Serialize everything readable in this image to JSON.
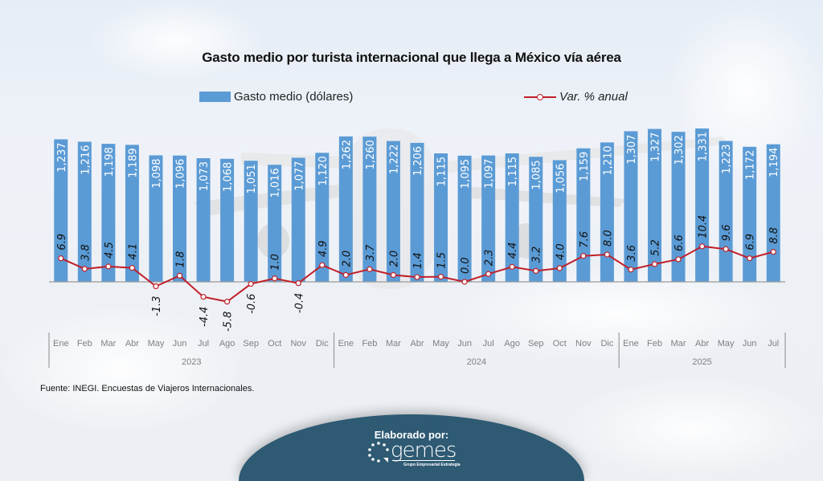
{
  "chart_data": {
    "type": "bar",
    "title": "Gasto medio por turista internacional que llega a México vía aérea",
    "xlabel": "",
    "ylabel": "",
    "categories": [
      "Ene",
      "Feb",
      "Mar",
      "Abr",
      "May",
      "Jun",
      "Jul",
      "Ago",
      "Sep",
      "Oct",
      "Nov",
      "Dic",
      "Ene",
      "Feb",
      "Mar",
      "Abr",
      "May",
      "Jun",
      "Jul",
      "Ago",
      "Sep",
      "Oct",
      "Nov",
      "Dic",
      "Ene",
      "Feb",
      "Mar",
      "Abr",
      "May",
      "Jun",
      "Jul"
    ],
    "year_groups": [
      {
        "label": "2023",
        "count": 12
      },
      {
        "label": "2024",
        "count": 12
      },
      {
        "label": "2025",
        "count": 7
      }
    ],
    "series": [
      {
        "name": "Gasto medio (dólares)",
        "type": "bar",
        "color": "#5b9bd5",
        "values": [
          1237,
          1216,
          1198,
          1189,
          1098,
          1096,
          1073,
          1068,
          1051,
          1016,
          1077,
          1120,
          1262,
          1260,
          1222,
          1206,
          1115,
          1095,
          1097,
          1115,
          1085,
          1056,
          1159,
          1210,
          1307,
          1327,
          1302,
          1331,
          1223,
          1172,
          1194
        ],
        "labels": [
          "1,237",
          "1,216",
          "1,198",
          "1,189",
          "1,098",
          "1,096",
          "1,073",
          "1,068",
          "1,051",
          "1,016",
          "1,077",
          "1,120",
          "1,262",
          "1,260",
          "1,222",
          "1,206",
          "1,115",
          "1,095",
          "1,097",
          "1,115",
          "1,085",
          "1,056",
          "1,159",
          "1,210",
          "1,307",
          "1,327",
          "1,302",
          "1,331",
          "1,223",
          "1,172",
          "1,194"
        ]
      },
      {
        "name": "Var. % anual",
        "type": "line",
        "color": "#c0202a",
        "values": [
          6.9,
          3.8,
          4.5,
          4.1,
          -1.3,
          1.8,
          -4.4,
          -5.8,
          -0.6,
          1.0,
          -0.4,
          4.9,
          2.0,
          3.7,
          2.0,
          1.4,
          1.5,
          0.0,
          2.3,
          4.4,
          3.2,
          4.0,
          7.6,
          8.0,
          3.6,
          5.2,
          6.6,
          10.4,
          9.6,
          6.9,
          8.8
        ],
        "labels": [
          "6.9",
          "3.8",
          "4.5",
          "4.1",
          "-1.3",
          "1.8",
          "-4.4",
          "-5.8",
          "-0.6",
          "1.0",
          "-0.4",
          "4.9",
          "2.0",
          "3.7",
          "2.0",
          "1.4",
          "1.5",
          "0.0",
          "2.3",
          "4.4",
          "3.2",
          "4.0",
          "7.6",
          "8.0",
          "3.6",
          "5.2",
          "6.6",
          "10.4",
          "9.6",
          "6.9",
          "8.8"
        ]
      }
    ],
    "ylim_bars": [
      0,
      1400
    ],
    "ylim_line_pct": [
      -12,
      42
    ],
    "grid": false,
    "legend_position": "top"
  },
  "legend": {
    "bar_label": "Gasto medio (dólares)",
    "line_label": "Var. % anual"
  },
  "source_note": "Fuente: INEGI. Encuestas de Viajeros Internacionales.",
  "footer": {
    "label": "Elaborado por:",
    "brand": "gemes",
    "tagline": "Grupo Empresarial Estrategia"
  }
}
